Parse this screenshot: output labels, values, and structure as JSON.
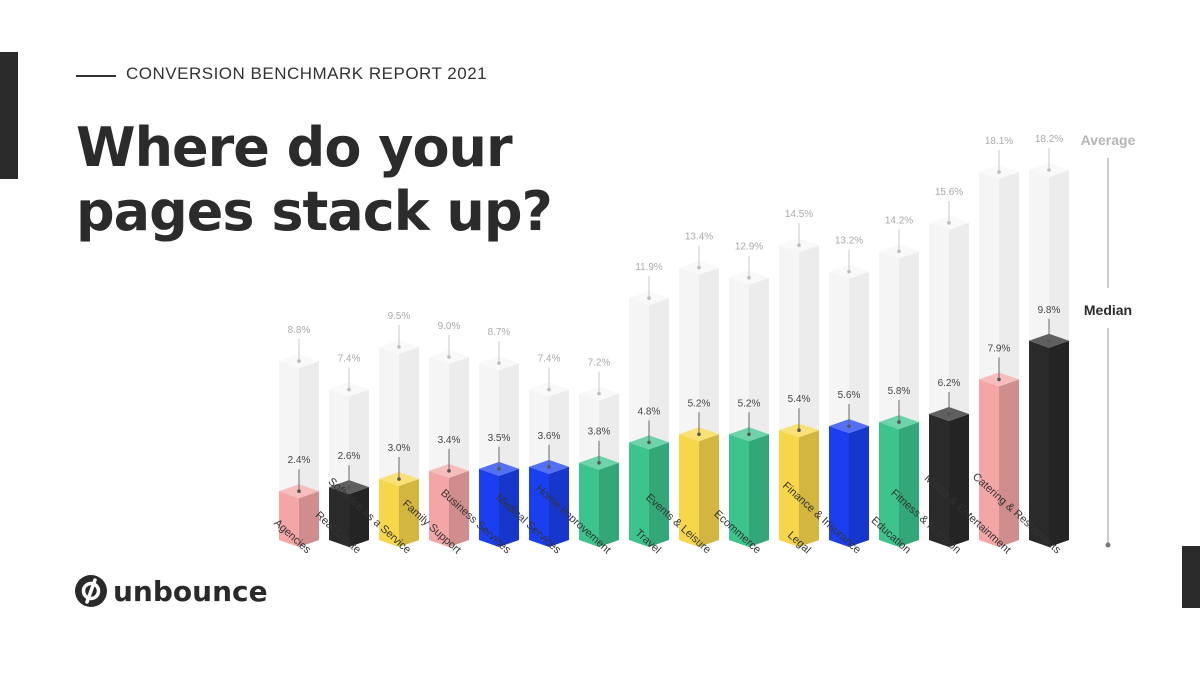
{
  "header": {
    "report_title": "CONVERSION BENCHMARK REPORT 2021",
    "headline_line1": "Where do your",
    "headline_line2": "pages stack up?"
  },
  "brand": {
    "name": "unbounce",
    "icon": "unbounce-logo-icon"
  },
  "colors": {
    "pink": "#f4a6a6",
    "black": "#2a2a2a",
    "yellow": "#f7d64a",
    "blue": "#1a3ff0",
    "green": "#3cc48c",
    "ghost": "#f1f1f1"
  },
  "chart_data": {
    "type": "bar",
    "categories": [
      "Agencies",
      "Real Estate",
      "Software as a Service",
      "Family Support",
      "Business Services",
      "Medical Services",
      "Home Improvement",
      "Travel",
      "Events & Leisure",
      "Ecommerce",
      "Legal",
      "Finance & Insurance",
      "Education",
      "Fitness & Nutrition",
      "Media & Entertainment",
      "Catering & Restaurants"
    ],
    "category_icons": [
      "megaphone-icon",
      "house-icon",
      "cloud-icon",
      "hands-icon",
      "briefcase-icon",
      "medical-icon",
      "toolbox-icon",
      "plane-icon",
      "ticket-icon",
      "cart-icon",
      "gavel-icon",
      "bank-icon",
      "book-icon",
      "dumbbell-icon",
      "play-icon",
      "dish-icon"
    ],
    "series": [
      {
        "name": "Median",
        "values": [
          2.4,
          2.6,
          3.0,
          3.4,
          3.5,
          3.6,
          3.8,
          4.8,
          5.2,
          5.2,
          5.4,
          5.6,
          5.8,
          6.2,
          7.9,
          9.8
        ],
        "labels": [
          "2.4%",
          "2.6%",
          "3.0%",
          "3.4%",
          "3.5%",
          "3.6%",
          "3.8%",
          "4.8%",
          "5.2%",
          "5.2%",
          "5.4%",
          "5.6%",
          "5.8%",
          "6.2%",
          "7.9%",
          "9.8%"
        ]
      },
      {
        "name": "Average",
        "values": [
          8.8,
          7.4,
          9.5,
          9.0,
          8.7,
          7.4,
          7.2,
          11.9,
          13.4,
          12.9,
          14.5,
          13.2,
          14.2,
          15.6,
          18.1,
          18.2
        ],
        "labels": [
          "8.8%",
          "7.4%",
          "9.5%",
          "9.0%",
          "8.7%",
          "7.4%",
          "7.2%",
          "11.9%",
          "13.4%",
          "12.9%",
          "14.5%",
          "13.2%",
          "14.2%",
          "15.6%",
          "18.1%",
          "18.2%"
        ]
      }
    ],
    "bar_colors": [
      "pink",
      "black",
      "yellow",
      "pink",
      "blue",
      "blue",
      "green",
      "green",
      "yellow",
      "green",
      "yellow",
      "blue",
      "green",
      "black",
      "pink",
      "black"
    ],
    "legend": {
      "average_label": "Average",
      "median_label": "Median",
      "placement": "right"
    },
    "title": "",
    "xlabel": "",
    "ylabel": "",
    "ylim": [
      0,
      18.2
    ],
    "grid": false
  }
}
